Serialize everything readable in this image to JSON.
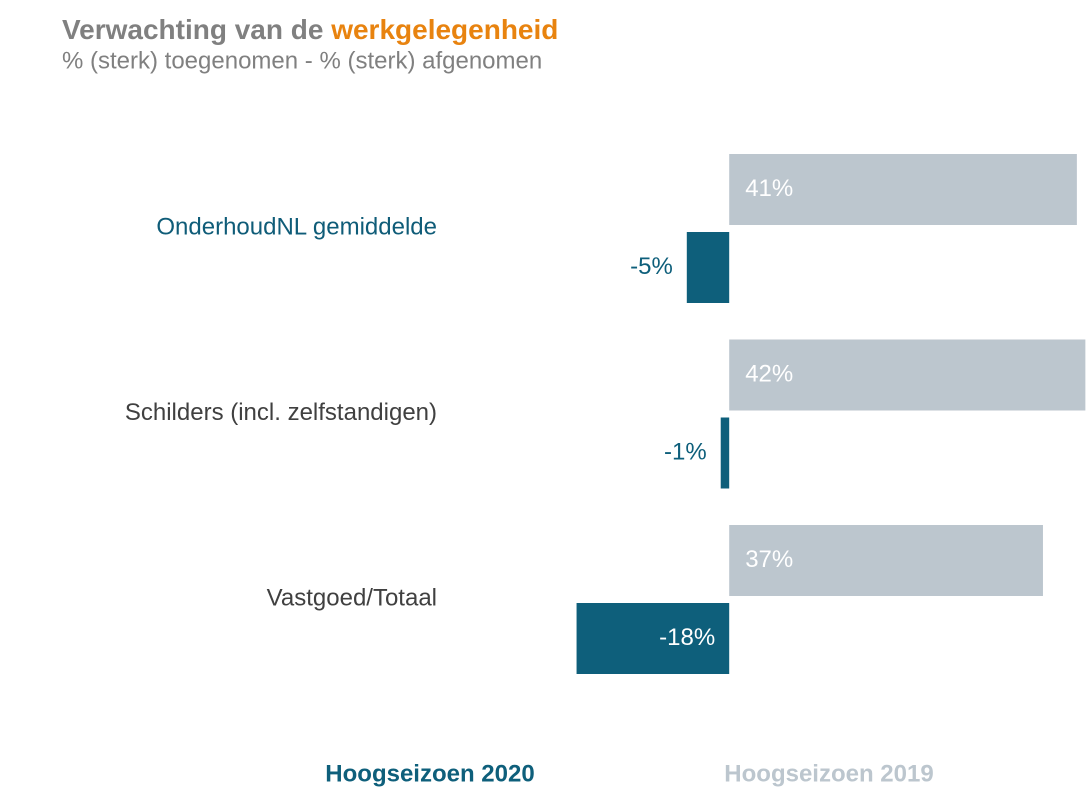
{
  "chart_data": {
    "type": "bar",
    "orientation": "horizontal",
    "title": "Verwachting van de",
    "title_highlight": "werkgelegenheid",
    "title_highlight_color": "#e8830f",
    "subtitle": "% (sterk) toegenomen - % (sterk) afgenomen",
    "categories": [
      "OnderhoudNL gemiddelde",
      "Schilders (incl. zelfstandigen)",
      "Vastgoed/Totaal"
    ],
    "category_colors": [
      "#0f5c78",
      "#404040",
      "#404040"
    ],
    "series": [
      {
        "name": "Hoogseizoen 2019",
        "color": "#bcc6ce",
        "values": [
          41,
          42,
          37
        ],
        "value_labels": [
          "41%",
          "42%",
          "37%"
        ]
      },
      {
        "name": "Hoogseizoen 2020",
        "color": "#0e5f7b",
        "values": [
          -5,
          -1,
          -18
        ],
        "value_labels": [
          "-5%",
          "-1%",
          "-18%"
        ]
      }
    ],
    "legend_position": "bottom",
    "xlim": [
      -20,
      45
    ]
  }
}
